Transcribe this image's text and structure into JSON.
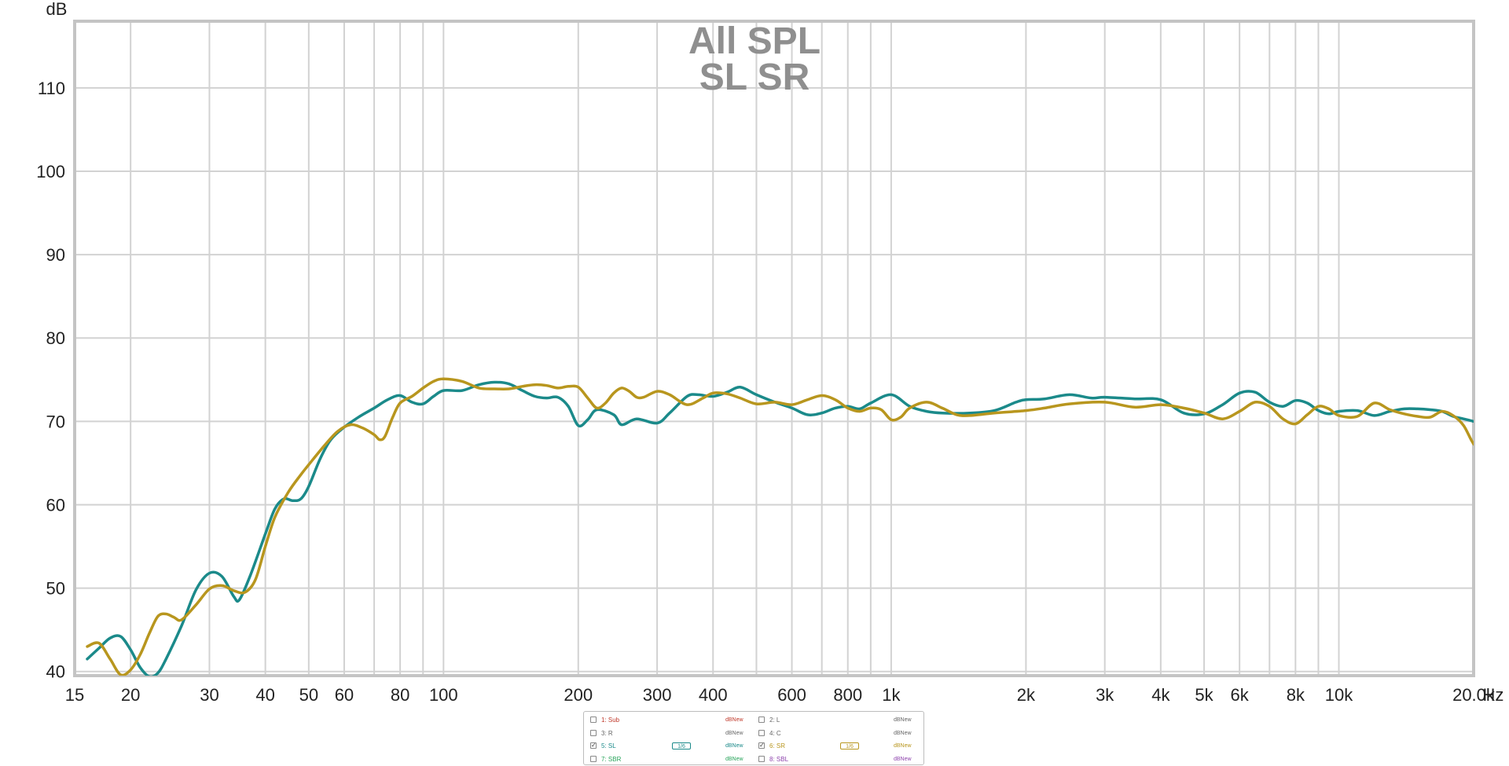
{
  "chart_data": {
    "type": "line",
    "title": "All SPL",
    "subtitle": "SL SR",
    "ylabel": "dB",
    "xlabel": "Hz",
    "xscale": "log",
    "xlim": [
      15,
      20000
    ],
    "ylim": [
      39.5,
      118
    ],
    "grid": true,
    "y_ticks": [
      40,
      50,
      60,
      70,
      80,
      90,
      100,
      110
    ],
    "x_ticks": [
      {
        "value": 15,
        "label": "15"
      },
      {
        "value": 20,
        "label": "20"
      },
      {
        "value": 30,
        "label": "30"
      },
      {
        "value": 40,
        "label": "40"
      },
      {
        "value": 50,
        "label": "50"
      },
      {
        "value": 60,
        "label": "60"
      },
      {
        "value": 80,
        "label": "80"
      },
      {
        "value": 100,
        "label": "100"
      },
      {
        "value": 200,
        "label": "200"
      },
      {
        "value": 300,
        "label": "300"
      },
      {
        "value": 400,
        "label": "400"
      },
      {
        "value": 600,
        "label": "600"
      },
      {
        "value": 800,
        "label": "800"
      },
      {
        "value": 1000,
        "label": "1k"
      },
      {
        "value": 2000,
        "label": "2k"
      },
      {
        "value": 3000,
        "label": "3k"
      },
      {
        "value": 4000,
        "label": "4k"
      },
      {
        "value": 5000,
        "label": "5k"
      },
      {
        "value": 6000,
        "label": "6k"
      },
      {
        "value": 8000,
        "label": "8k"
      },
      {
        "value": 10000,
        "label": "10k"
      },
      {
        "value": 20000,
        "label": "20.0k"
      }
    ],
    "series": [
      {
        "name": "5: SL",
        "color": "#1b8a8a",
        "points": [
          [
            16,
            41.5
          ],
          [
            17,
            42.8
          ],
          [
            18,
            44.0
          ],
          [
            19,
            44.2
          ],
          [
            20,
            42.6
          ],
          [
            21,
            40.5
          ],
          [
            22,
            39.4
          ],
          [
            23,
            39.8
          ],
          [
            24,
            41.5
          ],
          [
            26,
            45.5
          ],
          [
            28,
            49.8
          ],
          [
            30,
            51.8
          ],
          [
            32,
            51.4
          ],
          [
            34,
            49.0
          ],
          [
            35,
            48.6
          ],
          [
            37,
            51.5
          ],
          [
            40,
            56.5
          ],
          [
            42,
            59.5
          ],
          [
            44,
            60.7
          ],
          [
            46,
            60.5
          ],
          [
            48,
            60.7
          ],
          [
            50,
            62.2
          ],
          [
            53,
            65.5
          ],
          [
            56,
            67.8
          ],
          [
            60,
            69.3
          ],
          [
            65,
            70.6
          ],
          [
            70,
            71.6
          ],
          [
            75,
            72.6
          ],
          [
            80,
            73.1
          ],
          [
            85,
            72.3
          ],
          [
            90,
            72.1
          ],
          [
            95,
            73.0
          ],
          [
            100,
            73.7
          ],
          [
            110,
            73.7
          ],
          [
            120,
            74.4
          ],
          [
            130,
            74.7
          ],
          [
            140,
            74.5
          ],
          [
            150,
            73.7
          ],
          [
            160,
            73.0
          ],
          [
            170,
            72.8
          ],
          [
            180,
            72.9
          ],
          [
            190,
            71.8
          ],
          [
            200,
            69.5
          ],
          [
            210,
            70.2
          ],
          [
            220,
            71.4
          ],
          [
            240,
            70.8
          ],
          [
            250,
            69.6
          ],
          [
            270,
            70.3
          ],
          [
            300,
            69.8
          ],
          [
            320,
            71.0
          ],
          [
            350,
            73.0
          ],
          [
            370,
            73.2
          ],
          [
            400,
            73.0
          ],
          [
            430,
            73.5
          ],
          [
            460,
            74.1
          ],
          [
            500,
            73.2
          ],
          [
            550,
            72.3
          ],
          [
            600,
            71.6
          ],
          [
            650,
            70.8
          ],
          [
            700,
            71.0
          ],
          [
            750,
            71.6
          ],
          [
            800,
            71.8
          ],
          [
            850,
            71.5
          ],
          [
            900,
            72.2
          ],
          [
            1000,
            73.2
          ],
          [
            1100,
            71.8
          ],
          [
            1200,
            71.2
          ],
          [
            1300,
            71.0
          ],
          [
            1500,
            71.0
          ],
          [
            1700,
            71.3
          ],
          [
            1900,
            72.3
          ],
          [
            2000,
            72.6
          ],
          [
            2200,
            72.7
          ],
          [
            2500,
            73.2
          ],
          [
            2800,
            72.8
          ],
          [
            3000,
            72.9
          ],
          [
            3500,
            72.7
          ],
          [
            4000,
            72.6
          ],
          [
            4500,
            71.0
          ],
          [
            5000,
            70.9
          ],
          [
            5500,
            72.0
          ],
          [
            6000,
            73.4
          ],
          [
            6500,
            73.5
          ],
          [
            7000,
            72.3
          ],
          [
            7500,
            71.8
          ],
          [
            8000,
            72.5
          ],
          [
            8500,
            72.2
          ],
          [
            9000,
            71.3
          ],
          [
            9500,
            70.9
          ],
          [
            10000,
            71.2
          ],
          [
            11000,
            71.3
          ],
          [
            12000,
            70.7
          ],
          [
            13000,
            71.2
          ],
          [
            14000,
            71.5
          ],
          [
            15000,
            71.5
          ],
          [
            16000,
            71.4
          ],
          [
            17000,
            71.2
          ],
          [
            18000,
            70.6
          ],
          [
            19000,
            70.3
          ],
          [
            20000,
            70.0
          ]
        ]
      },
      {
        "name": "6: SR",
        "color": "#b8961e",
        "points": [
          [
            16,
            43.0
          ],
          [
            17,
            43.4
          ],
          [
            18,
            41.5
          ],
          [
            19,
            39.6
          ],
          [
            20,
            40.2
          ],
          [
            21,
            42.0
          ],
          [
            22,
            44.5
          ],
          [
            23,
            46.6
          ],
          [
            24,
            46.9
          ],
          [
            25,
            46.5
          ],
          [
            26,
            46.2
          ],
          [
            28,
            48.0
          ],
          [
            30,
            49.9
          ],
          [
            32,
            50.3
          ],
          [
            34,
            49.7
          ],
          [
            36,
            49.5
          ],
          [
            38,
            51.0
          ],
          [
            40,
            55.0
          ],
          [
            42,
            58.5
          ],
          [
            45,
            61.5
          ],
          [
            48,
            63.6
          ],
          [
            50,
            64.8
          ],
          [
            54,
            67.0
          ],
          [
            58,
            68.8
          ],
          [
            62,
            69.6
          ],
          [
            66,
            69.2
          ],
          [
            70,
            68.4
          ],
          [
            72,
            67.8
          ],
          [
            74,
            68.2
          ],
          [
            77,
            70.5
          ],
          [
            80,
            72.2
          ],
          [
            85,
            73.0
          ],
          [
            90,
            74.0
          ],
          [
            95,
            74.8
          ],
          [
            100,
            75.1
          ],
          [
            110,
            74.8
          ],
          [
            120,
            74.0
          ],
          [
            130,
            73.9
          ],
          [
            140,
            73.9
          ],
          [
            150,
            74.2
          ],
          [
            160,
            74.4
          ],
          [
            170,
            74.3
          ],
          [
            180,
            74.0
          ],
          [
            190,
            74.2
          ],
          [
            200,
            74.1
          ],
          [
            210,
            72.8
          ],
          [
            220,
            71.6
          ],
          [
            230,
            72.2
          ],
          [
            240,
            73.4
          ],
          [
            250,
            74.0
          ],
          [
            260,
            73.6
          ],
          [
            270,
            72.9
          ],
          [
            280,
            72.9
          ],
          [
            300,
            73.6
          ],
          [
            320,
            73.2
          ],
          [
            350,
            72.0
          ],
          [
            380,
            72.8
          ],
          [
            400,
            73.4
          ],
          [
            430,
            73.3
          ],
          [
            460,
            72.8
          ],
          [
            500,
            72.1
          ],
          [
            550,
            72.3
          ],
          [
            600,
            72.0
          ],
          [
            650,
            72.6
          ],
          [
            700,
            73.1
          ],
          [
            750,
            72.6
          ],
          [
            800,
            71.6
          ],
          [
            850,
            71.2
          ],
          [
            900,
            71.6
          ],
          [
            950,
            71.4
          ],
          [
            1000,
            70.2
          ],
          [
            1050,
            70.5
          ],
          [
            1100,
            71.6
          ],
          [
            1200,
            72.3
          ],
          [
            1300,
            71.6
          ],
          [
            1400,
            70.8
          ],
          [
            1500,
            70.7
          ],
          [
            1700,
            71.0
          ],
          [
            2000,
            71.3
          ],
          [
            2200,
            71.6
          ],
          [
            2500,
            72.1
          ],
          [
            3000,
            72.3
          ],
          [
            3500,
            71.7
          ],
          [
            4000,
            72.0
          ],
          [
            4500,
            71.6
          ],
          [
            5000,
            71.0
          ],
          [
            5500,
            70.3
          ],
          [
            6000,
            71.2
          ],
          [
            6500,
            72.3
          ],
          [
            7000,
            71.8
          ],
          [
            7500,
            70.3
          ],
          [
            8000,
            69.7
          ],
          [
            8500,
            70.8
          ],
          [
            9000,
            71.8
          ],
          [
            9500,
            71.5
          ],
          [
            10000,
            70.7
          ],
          [
            11000,
            70.6
          ],
          [
            12000,
            72.2
          ],
          [
            13000,
            71.4
          ],
          [
            14000,
            70.9
          ],
          [
            15000,
            70.6
          ],
          [
            16000,
            70.5
          ],
          [
            17000,
            71.2
          ],
          [
            18000,
            70.7
          ],
          [
            19000,
            69.5
          ],
          [
            20000,
            67.3
          ],
          [
            21000,
            66.6
          ]
        ]
      }
    ]
  },
  "legend": {
    "rows": [
      {
        "left": {
          "label": "1: Sub",
          "color": "#c0392b",
          "checked": false,
          "db": "dBNew"
        },
        "right": {
          "label": "2: L",
          "color": "#666666",
          "checked": false,
          "db": "dBNew"
        }
      },
      {
        "left": {
          "label": "3: R",
          "color": "#666666",
          "checked": false,
          "db": "dBNew"
        },
        "right": {
          "label": "4: C",
          "color": "#666666",
          "checked": false,
          "db": "dBNew"
        }
      },
      {
        "left": {
          "label": "5: SL",
          "color": "#1b8a8a",
          "checked": true,
          "db": "dBNew",
          "smooth": "1/6"
        },
        "right": {
          "label": "6: SR",
          "color": "#b8961e",
          "checked": true,
          "db": "dBNew",
          "smooth": "1/6"
        }
      },
      {
        "left": {
          "label": "7: SBR",
          "color": "#27a35a",
          "checked": false,
          "db": "dBNew"
        },
        "right": {
          "label": "8: SBL",
          "color": "#8e44ad",
          "checked": false,
          "db": "dBNew"
        }
      }
    ]
  }
}
